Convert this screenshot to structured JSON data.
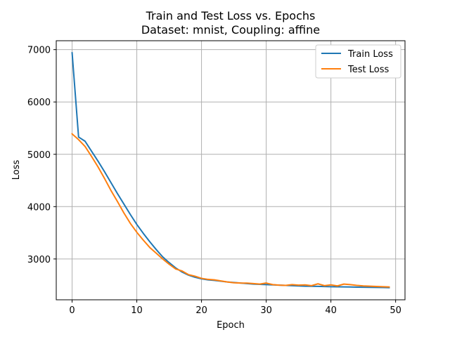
{
  "chart_data": {
    "type": "line",
    "title": "Train and Test Loss vs. Epochs",
    "subtitle": "Dataset: mnist, Coupling: affine",
    "xlabel": "Epoch",
    "ylabel": "Loss",
    "xlim": [
      -2.45,
      51.45
    ],
    "ylim": [
      2220,
      7170
    ],
    "xticks": [
      0,
      10,
      20,
      30,
      40,
      50
    ],
    "yticks": [
      3000,
      4000,
      5000,
      6000,
      7000
    ],
    "grid": true,
    "legend_position": "top-right",
    "x": [
      0,
      1,
      2,
      3,
      4,
      5,
      6,
      7,
      8,
      9,
      10,
      11,
      12,
      13,
      14,
      15,
      16,
      17,
      18,
      19,
      20,
      21,
      22,
      23,
      24,
      25,
      26,
      27,
      28,
      29,
      30,
      31,
      32,
      33,
      34,
      35,
      36,
      37,
      38,
      39,
      40,
      41,
      42,
      43,
      44,
      45,
      46,
      47,
      48,
      49
    ],
    "series": [
      {
        "name": "Train Loss",
        "color": "#1f77b4",
        "values": [
          6940,
          5330,
          5250,
          5060,
          4870,
          4670,
          4460,
          4250,
          4050,
          3850,
          3660,
          3490,
          3330,
          3180,
          3040,
          2930,
          2830,
          2750,
          2690,
          2650,
          2620,
          2600,
          2590,
          2575,
          2560,
          2550,
          2540,
          2530,
          2520,
          2515,
          2510,
          2505,
          2500,
          2495,
          2490,
          2485,
          2480,
          2478,
          2476,
          2474,
          2470,
          2468,
          2466,
          2464,
          2462,
          2460,
          2458,
          2456,
          2454,
          2452
        ]
      },
      {
        "name": "Test Loss",
        "color": "#ff7f0e",
        "values": [
          5390,
          5280,
          5150,
          4960,
          4760,
          4540,
          4310,
          4100,
          3880,
          3680,
          3510,
          3360,
          3220,
          3110,
          3000,
          2900,
          2810,
          2770,
          2700,
          2670,
          2630,
          2610,
          2600,
          2580,
          2560,
          2545,
          2540,
          2538,
          2530,
          2520,
          2540,
          2510,
          2500,
          2495,
          2510,
          2500,
          2505,
          2490,
          2525,
          2490,
          2505,
          2485,
          2520,
          2510,
          2495,
          2485,
          2480,
          2475,
          2470,
          2465
        ]
      }
    ]
  }
}
